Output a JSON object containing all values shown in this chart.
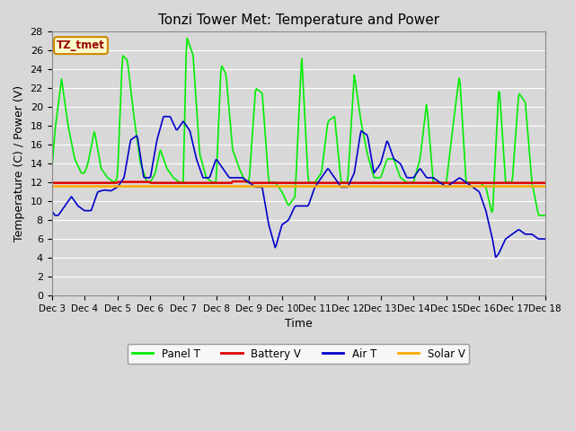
{
  "title": "Tonzi Tower Met: Temperature and Power",
  "xlabel": "Time",
  "ylabel": "Temperature (C) / Power (V)",
  "ylim": [
    0,
    28
  ],
  "yticks": [
    0,
    2,
    4,
    6,
    8,
    10,
    12,
    14,
    16,
    18,
    20,
    22,
    24,
    26,
    28
  ],
  "bg_color": "#d8d8d8",
  "plot_bg_color": "#d8d8d8",
  "legend_label": "TZ_tmet",
  "legend_box_facecolor": "#ffffcc",
  "legend_box_edge": "#cc8800",
  "legend_text_color": "#990000",
  "grid_color": "#ffffff",
  "series": {
    "panel_t": {
      "color": "#00ee00",
      "label": "Panel T",
      "linewidth": 1.2
    },
    "battery_v": {
      "color": "#dd0000",
      "label": "Battery V",
      "linewidth": 1.8
    },
    "air_t": {
      "color": "#0000cc",
      "label": "Air T",
      "linewidth": 1.2
    },
    "solar_v": {
      "color": "#ffaa00",
      "label": "Solar V",
      "linewidth": 1.8
    }
  },
  "xlim": [
    3,
    18
  ],
  "x_tick_days": [
    3,
    4,
    5,
    6,
    7,
    8,
    9,
    10,
    11,
    12,
    13,
    14,
    15,
    16,
    17,
    18
  ],
  "panel_t_keypoints_x": [
    3.0,
    3.1,
    3.3,
    3.5,
    3.7,
    3.9,
    4.0,
    4.1,
    4.3,
    4.5,
    4.7,
    4.9,
    5.0,
    5.15,
    5.3,
    5.5,
    5.7,
    5.9,
    6.0,
    6.15,
    6.3,
    6.5,
    6.7,
    6.9,
    7.0,
    7.1,
    7.3,
    7.5,
    7.7,
    7.9,
    8.0,
    8.15,
    8.3,
    8.5,
    8.7,
    8.9,
    9.0,
    9.2,
    9.4,
    9.6,
    9.8,
    10.0,
    10.2,
    10.4,
    10.6,
    10.8,
    11.0,
    11.2,
    11.4,
    11.6,
    11.8,
    12.0,
    12.2,
    12.4,
    12.6,
    12.8,
    13.0,
    13.2,
    13.4,
    13.6,
    13.8,
    14.0,
    14.2,
    14.4,
    14.6,
    14.8,
    15.0,
    15.2,
    15.4,
    15.6,
    15.8,
    16.0,
    16.2,
    16.4,
    16.6,
    16.8,
    17.0,
    17.2,
    17.4,
    17.6,
    17.8,
    18.0
  ],
  "panel_t_keypoints_y": [
    13.0,
    17.5,
    23.0,
    18.0,
    14.5,
    13.0,
    13.0,
    14.0,
    17.5,
    13.5,
    12.5,
    12.0,
    12.5,
    25.5,
    25.0,
    19.0,
    14.0,
    12.0,
    12.0,
    13.0,
    15.5,
    13.5,
    12.5,
    12.0,
    12.0,
    27.5,
    25.5,
    15.0,
    12.5,
    12.0,
    12.0,
    24.5,
    23.5,
    15.5,
    13.5,
    12.0,
    12.0,
    22.0,
    21.5,
    12.0,
    12.0,
    11.0,
    9.5,
    10.5,
    25.5,
    12.0,
    12.0,
    13.0,
    18.5,
    19.0,
    12.0,
    12.0,
    23.5,
    18.5,
    15.0,
    12.5,
    12.5,
    14.5,
    14.5,
    12.5,
    12.0,
    12.0,
    14.5,
    20.5,
    12.0,
    12.0,
    12.0,
    18.0,
    23.5,
    12.0,
    12.0,
    12.0,
    11.5,
    8.5,
    22.5,
    12.0,
    12.0,
    21.5,
    20.5,
    12.0,
    8.5,
    8.5
  ],
  "air_t_keypoints_x": [
    3.0,
    3.1,
    3.2,
    3.4,
    3.6,
    3.8,
    4.0,
    4.2,
    4.4,
    4.6,
    4.8,
    5.0,
    5.2,
    5.4,
    5.6,
    5.8,
    6.0,
    6.2,
    6.4,
    6.6,
    6.8,
    7.0,
    7.2,
    7.4,
    7.6,
    7.8,
    8.0,
    8.2,
    8.4,
    8.6,
    8.8,
    9.0,
    9.2,
    9.4,
    9.6,
    9.8,
    10.0,
    10.2,
    10.4,
    10.6,
    10.8,
    11.0,
    11.2,
    11.4,
    11.6,
    11.8,
    12.0,
    12.2,
    12.4,
    12.6,
    12.8,
    13.0,
    13.2,
    13.4,
    13.6,
    13.8,
    14.0,
    14.2,
    14.4,
    14.6,
    14.8,
    15.0,
    15.2,
    15.4,
    15.6,
    15.8,
    16.0,
    16.2,
    16.4,
    16.5,
    16.6,
    16.8,
    17.0,
    17.2,
    17.4,
    17.6,
    17.8,
    18.0
  ],
  "air_t_keypoints_y": [
    9.0,
    8.5,
    8.5,
    9.5,
    10.5,
    9.5,
    9.0,
    9.0,
    11.0,
    11.2,
    11.1,
    11.5,
    12.5,
    16.5,
    17.0,
    12.5,
    12.5,
    16.5,
    19.0,
    19.0,
    17.5,
    18.5,
    17.5,
    14.5,
    12.5,
    12.5,
    14.5,
    13.5,
    12.5,
    12.5,
    12.5,
    12.0,
    11.5,
    11.5,
    7.5,
    5.0,
    7.5,
    8.0,
    9.5,
    9.5,
    9.5,
    11.5,
    12.5,
    13.5,
    12.5,
    11.5,
    11.5,
    13.0,
    17.5,
    17.0,
    13.0,
    14.0,
    16.5,
    14.5,
    14.0,
    12.5,
    12.5,
    13.5,
    12.5,
    12.5,
    12.0,
    11.5,
    12.0,
    12.5,
    12.0,
    11.5,
    11.0,
    9.0,
    6.0,
    4.0,
    4.5,
    6.0,
    6.5,
    7.0,
    6.5,
    6.5,
    6.0,
    6.0
  ],
  "battery_v_val": 11.95,
  "solar_v_val": 11.65
}
